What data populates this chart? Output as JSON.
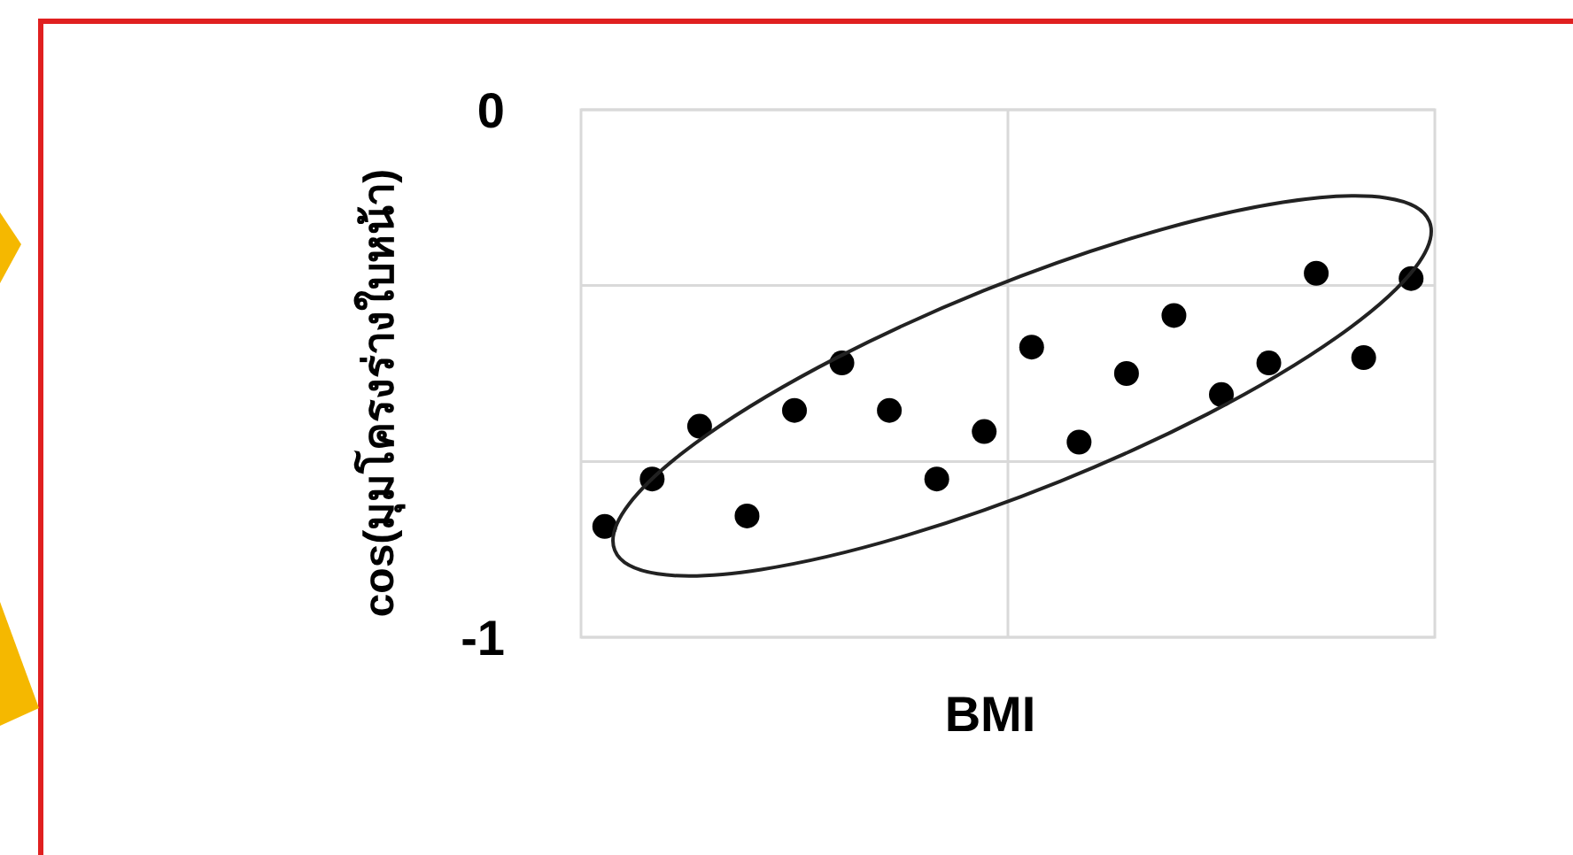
{
  "chart_data": {
    "type": "scatter",
    "xlabel": "BMI",
    "ylabel": "cos(มุมโครงร่างใบหน้า)",
    "categories": [
      null,
      null,
      null,
      null,
      null,
      null,
      null,
      null,
      null,
      null,
      null,
      null,
      null,
      null,
      null,
      null,
      null,
      null
    ],
    "ylim": [
      -1,
      0
    ],
    "yticks": [
      {
        "value": 0,
        "label": "0"
      },
      {
        "value": -0.333,
        "label": null
      },
      {
        "value": -0.667,
        "label": null
      },
      {
        "value": -1,
        "label": "-1"
      }
    ],
    "tick_labels": "y",
    "grid": "y",
    "marker": "circle",
    "series": [
      {
        "color": "#000000",
        "values": [
          -0.79,
          -0.7,
          -0.6,
          -0.77,
          -0.57,
          -0.48,
          -0.57,
          -0.7,
          -0.61,
          -0.45,
          -0.63,
          -0.5,
          -0.39,
          -0.54,
          -0.48,
          -0.31,
          -0.47,
          -0.32
        ]
      }
    ]
  }
}
